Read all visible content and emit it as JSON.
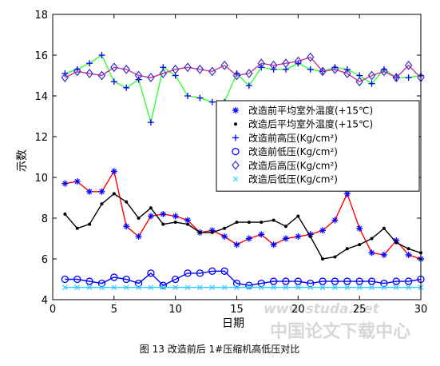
{
  "chart_data": {
    "type": "line",
    "title": "",
    "xlabel": "日期",
    "ylabel": "示数",
    "xlim": [
      0,
      30
    ],
    "ylim": [
      4,
      18
    ],
    "xticks": [
      0,
      5,
      10,
      15,
      20,
      25,
      30
    ],
    "yticks": [
      4,
      6,
      8,
      10,
      12,
      14,
      16,
      18
    ],
    "grid": false,
    "legend_position": "center-right",
    "x": [
      1,
      2,
      3,
      4,
      5,
      6,
      7,
      8,
      9,
      10,
      11,
      12,
      13,
      14,
      15,
      16,
      17,
      18,
      19,
      20,
      21,
      22,
      23,
      24,
      25,
      26,
      27,
      28,
      29,
      30
    ],
    "series": [
      {
        "name": "改造前平均室外温度(+15℃)",
        "color": "#0000ff",
        "line_color": "#ff0000",
        "marker": "star",
        "values": [
          9.7,
          9.8,
          9.3,
          9.3,
          10.3,
          7.6,
          7.1,
          8.1,
          8.2,
          8.1,
          7.9,
          7.3,
          7.4,
          7.1,
          6.7,
          7.0,
          7.2,
          6.7,
          7.0,
          7.1,
          7.2,
          7.4,
          7.9,
          9.2,
          7.5,
          6.3,
          6.2,
          6.9,
          6.2,
          6.0
        ]
      },
      {
        "name": "改造后平均室外温度(+15℃)",
        "color": "#000000",
        "line_color": "#000000",
        "marker": "dot",
        "values": [
          8.2,
          7.5,
          7.7,
          8.7,
          9.2,
          8.8,
          8.0,
          8.5,
          7.7,
          7.8,
          7.7,
          7.3,
          7.3,
          7.5,
          7.8,
          7.8,
          7.8,
          7.9,
          7.6,
          8.1,
          7.1,
          6.0,
          6.1,
          6.5,
          6.7,
          7.0,
          7.5,
          6.8,
          6.5,
          6.3
        ]
      },
      {
        "name": "改造前高压(Kg/cm²)",
        "color": "#0000ff",
        "line_color": "#33ff33",
        "marker": "plus",
        "values": [
          15.1,
          15.3,
          15.6,
          16.0,
          14.7,
          14.4,
          14.8,
          12.7,
          15.4,
          15.0,
          14.0,
          13.9,
          13.7,
          13.7,
          15.1,
          14.5,
          15.4,
          15.3,
          15.3,
          15.6,
          15.3,
          15.2,
          15.4,
          15.3,
          15.0,
          14.6,
          15.3,
          14.9,
          14.9,
          15.0
        ]
      },
      {
        "name": "改造前低压(Kg/cm²)",
        "color": "#0000ff",
        "line_color": "#0000ff",
        "marker": "circle",
        "values": [
          5.0,
          5.0,
          4.9,
          4.8,
          5.1,
          5.0,
          4.8,
          5.3,
          4.7,
          5.0,
          5.3,
          5.3,
          5.4,
          5.4,
          4.8,
          4.7,
          4.8,
          4.9,
          4.9,
          4.9,
          4.8,
          4.9,
          4.9,
          4.9,
          4.9,
          4.9,
          4.8,
          4.9,
          4.9,
          5.0
        ]
      },
      {
        "name": "改造后高压(Kg/cm²)",
        "color": "#3333cc",
        "line_color": "#cc3399",
        "marker": "diamond",
        "values": [
          14.9,
          15.2,
          15.1,
          15.0,
          15.4,
          15.3,
          15.0,
          14.9,
          15.1,
          15.3,
          15.4,
          15.3,
          15.2,
          15.5,
          15.0,
          15.1,
          15.6,
          15.5,
          15.6,
          15.7,
          15.9,
          15.2,
          15.3,
          15.1,
          14.7,
          15.0,
          15.2,
          14.9,
          15.5,
          14.9
        ]
      },
      {
        "name": "改造后低压(Kg/cm²)",
        "color": "#33ccff",
        "line_color": "#33ccff",
        "marker": "x",
        "values": [
          4.6,
          4.6,
          4.6,
          4.6,
          4.6,
          4.6,
          4.6,
          4.6,
          4.6,
          4.6,
          4.6,
          4.6,
          4.6,
          4.6,
          4.6,
          4.6,
          4.6,
          4.6,
          4.6,
          4.6,
          4.6,
          4.6,
          4.6,
          4.6,
          4.6,
          4.6,
          4.6,
          4.6,
          4.6,
          4.6
        ]
      }
    ]
  },
  "caption": "图 13  改造前后 1#压缩机高低压对比",
  "watermark": {
    "url_text": "www.studa.net",
    "site_text": "中国论文下载中心"
  }
}
